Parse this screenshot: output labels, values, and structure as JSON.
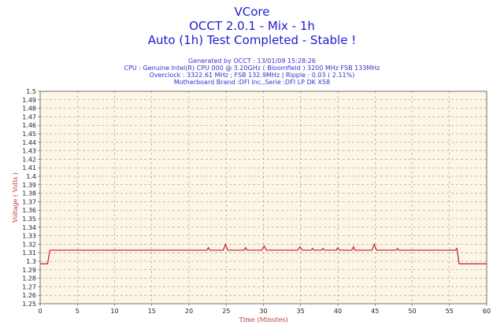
{
  "header": {
    "title": "VCore",
    "subtitle": "OCCT 2.0.1 - Mix - 1h",
    "status": "Auto (1h) Test Completed - Stable !",
    "info": [
      "Generated by OCCT : 13/01/09 15:28:26",
      "CPU : Genuine Intel(R) CPU 000 @ 3.20GHz ( Bloomfield ) 3200 MHz FSB 133MHz",
      "Overclock : 3322.61 MHz ; FSB 132.9MHz | Ripple : 0.03 ( 2.11%)",
      "Motherboard Brand :DFI Inc.,Serie :DFI LP DK X58"
    ]
  },
  "colors": {
    "plot_bg": "#fdf5e6",
    "line": "#c02020",
    "grid": "#888888",
    "title": "#1c1cd0"
  },
  "chart_data": {
    "type": "line",
    "xlabel": "Time (Minutes)",
    "ylabel": "Voltage ( Volts )",
    "xlim": [
      0,
      60
    ],
    "ylim": [
      1.25,
      1.5
    ],
    "x_ticks": [
      0,
      5,
      10,
      15,
      20,
      25,
      30,
      35,
      40,
      45,
      50,
      55,
      60
    ],
    "y_ticks": [
      1.25,
      1.26,
      1.27,
      1.28,
      1.29,
      1.3,
      1.31,
      1.32,
      1.33,
      1.34,
      1.35,
      1.36,
      1.37,
      1.38,
      1.39,
      1.4,
      1.41,
      1.42,
      1.43,
      1.44,
      1.45,
      1.46,
      1.47,
      1.48,
      1.49,
      1.5
    ],
    "grid": true,
    "series": [
      {
        "points": [
          [
            0,
            1.297
          ],
          [
            1.0,
            1.297
          ],
          [
            1.3,
            1.313
          ],
          [
            22.4,
            1.313
          ],
          [
            22.6,
            1.316
          ],
          [
            22.8,
            1.313
          ],
          [
            24.6,
            1.313
          ],
          [
            24.9,
            1.32
          ],
          [
            25.2,
            1.313
          ],
          [
            27.4,
            1.313
          ],
          [
            27.6,
            1.316
          ],
          [
            27.8,
            1.313
          ],
          [
            29.8,
            1.313
          ],
          [
            30.1,
            1.318
          ],
          [
            30.4,
            1.313
          ],
          [
            34.6,
            1.313
          ],
          [
            34.9,
            1.317
          ],
          [
            35.2,
            1.313
          ],
          [
            36.4,
            1.313
          ],
          [
            36.6,
            1.315
          ],
          [
            36.8,
            1.313
          ],
          [
            37.8,
            1.313
          ],
          [
            38.0,
            1.315
          ],
          [
            38.2,
            1.313
          ],
          [
            39.8,
            1.313
          ],
          [
            40.0,
            1.316
          ],
          [
            40.2,
            1.313
          ],
          [
            41.9,
            1.313
          ],
          [
            42.1,
            1.317
          ],
          [
            42.3,
            1.313
          ],
          [
            44.6,
            1.313
          ],
          [
            44.9,
            1.32
          ],
          [
            45.2,
            1.313
          ],
          [
            47.8,
            1.313
          ],
          [
            48.0,
            1.315
          ],
          [
            48.2,
            1.313
          ],
          [
            55.8,
            1.313
          ],
          [
            56.0,
            1.315
          ],
          [
            56.3,
            1.297
          ],
          [
            60,
            1.297
          ]
        ]
      }
    ]
  }
}
